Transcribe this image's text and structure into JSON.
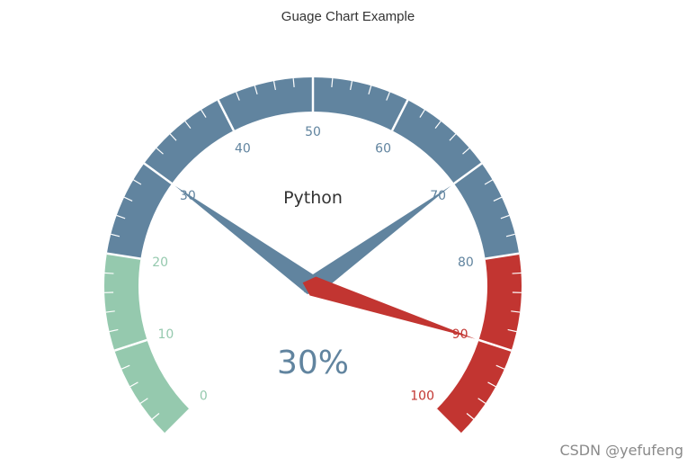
{
  "title": "Guage Chart Example",
  "watermark": "CSDN @yefufeng",
  "colors": {
    "low": "#95c9ae",
    "mid": "#61849f",
    "high": "#c23531",
    "separator": "#ffffff",
    "text": "#333333"
  },
  "chart_data": {
    "type": "gauge",
    "min": 0,
    "max": 100,
    "split_number": 10,
    "sub_ticks": 5,
    "tick_labels": [
      "0",
      "10",
      "20",
      "30",
      "40",
      "50",
      "60",
      "70",
      "80",
      "90",
      "100"
    ],
    "bands": [
      {
        "from": 0,
        "to": 20,
        "color": "#95c9ae"
      },
      {
        "from": 20,
        "to": 80,
        "color": "#61849f"
      },
      {
        "from": 80,
        "to": 100,
        "color": "#c23531"
      }
    ],
    "series_name": "Python",
    "detail": "30%",
    "pointers": [
      {
        "value": 30,
        "color": "#61849f"
      },
      {
        "value": 70,
        "color": "#61849f"
      },
      {
        "value": 90,
        "color": "#c23531"
      }
    ]
  }
}
